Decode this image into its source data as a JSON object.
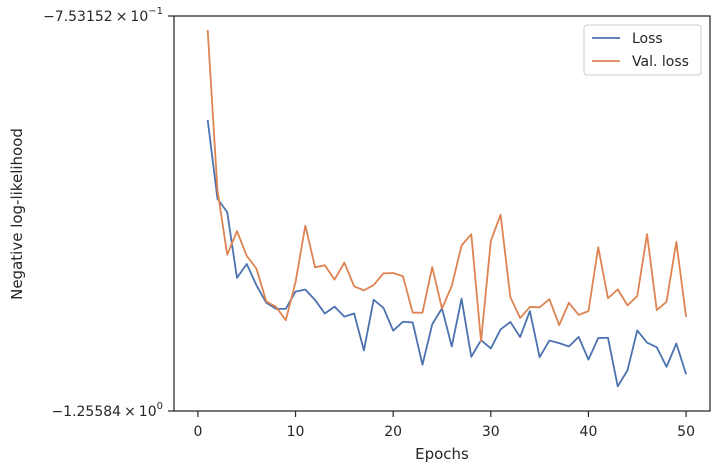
{
  "chart_data": {
    "type": "line",
    "title": "",
    "xlabel": "Epochs",
    "ylabel": "Negative log-likelihood",
    "xlim": [
      -2.45,
      52.45
    ],
    "ylim": [
      -1.25584,
      -0.753152
    ],
    "yscale": "log",
    "grid": false,
    "legend_position": "top-right",
    "xticks": [
      0,
      10,
      20,
      30,
      40,
      50
    ],
    "xtick_labels": [
      "0",
      "10",
      "20",
      "30",
      "40",
      "50"
    ],
    "ytick_labels": {
      "top": {
        "mantissa": "−7.53152",
        "times": "×",
        "base": "10",
        "exponent": "−1"
      },
      "bottom": {
        "mantissa": "−1.25584",
        "times": "×",
        "base": "10",
        "exponent": "0"
      }
    },
    "x": [
      1,
      2,
      3,
      4,
      5,
      6,
      7,
      8,
      9,
      10,
      11,
      12,
      13,
      14,
      15,
      16,
      17,
      18,
      19,
      20,
      21,
      22,
      23,
      24,
      25,
      26,
      27,
      28,
      29,
      30,
      31,
      32,
      33,
      34,
      35,
      36,
      37,
      38,
      39,
      40,
      41,
      42,
      43,
      44,
      45,
      46,
      47,
      48,
      49,
      50
    ],
    "series": [
      {
        "name": "Loss",
        "color": "#4c72b0",
        "values": [
          -0.8616,
          -0.9541,
          -0.9708,
          -1.057,
          -1.0382,
          -1.0674,
          -1.0917,
          -1.1003,
          -1.1003,
          -1.076,
          -1.0731,
          -1.0877,
          -1.107,
          -1.0971,
          -1.1115,
          -1.107,
          -1.1611,
          -1.0875,
          -1.0988,
          -1.1318,
          -1.1188,
          -1.1198,
          -1.1829,
          -1.1224,
          -1.0996,
          -1.1552,
          -1.0859,
          -1.1707,
          -1.1459,
          -1.1582,
          -1.13,
          -1.1191,
          -1.1412,
          -1.1035,
          -1.1714,
          -1.1464,
          -1.1502,
          -1.1552,
          -1.1409,
          -1.1751,
          -1.1427,
          -1.1422,
          -1.2165,
          -1.1913,
          -1.1315,
          -1.1493,
          -1.1565,
          -1.1861,
          -1.1508,
          -1.1975
        ]
      },
      {
        "name": "Val. loss",
        "color": "#dd8452",
        "values": [
          -0.767,
          -0.9432,
          -1.0259,
          -0.9949,
          -1.0273,
          -1.0447,
          -1.0898,
          -1.0974,
          -1.1166,
          -1.0628,
          -0.9879,
          -1.0427,
          -1.04,
          -1.0594,
          -1.0364,
          -1.0686,
          -1.0743,
          -1.0669,
          -1.0509,
          -1.0504,
          -1.0548,
          -1.1058,
          -1.1058,
          -1.0424,
          -1.1,
          -1.0681,
          -1.0137,
          -0.9989,
          -1.1476,
          -1.0076,
          -0.974,
          -1.0837,
          -1.1135,
          -1.0976,
          -1.0981,
          -1.0867,
          -1.1237,
          -1.0917,
          -1.109,
          -1.1035,
          -1.0159,
          -1.0853,
          -1.0729,
          -1.0954,
          -1.0823,
          -0.9989,
          -1.1021,
          -1.0903,
          -1.0089,
          -1.1118
        ]
      }
    ]
  }
}
